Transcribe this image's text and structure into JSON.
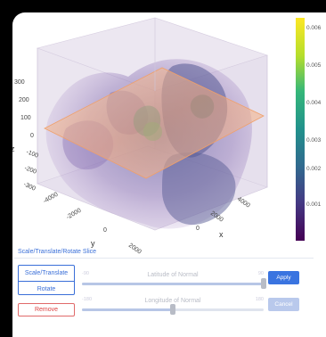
{
  "plot": {
    "z_axis": {
      "label": "z",
      "ticks": [
        "300",
        "200",
        "100",
        "0",
        "-100",
        "-200",
        "-300"
      ]
    },
    "y_axis": {
      "label": "y",
      "ticks": [
        "-4000",
        "-2000",
        "0",
        "2000"
      ]
    },
    "x_axis": {
      "label": "x",
      "ticks": [
        "4000",
        "2000",
        "0"
      ]
    },
    "colorbar": {
      "ticks": [
        "0.006",
        "0.005",
        "0.004",
        "0.003",
        "0.002",
        "0.001"
      ],
      "colors": [
        "#fde725",
        "#b5de2b",
        "#35b779",
        "#21918c",
        "#31688e",
        "#443983",
        "#440154"
      ]
    },
    "slice_plane_color": "#f5a25d",
    "volume_color": "#7a5fa8"
  },
  "controls": {
    "section_title": "Scale/Translate/Rotate Slice",
    "mode_buttons": [
      "Scale/Translate",
      "Rotate"
    ],
    "remove_label": "Remove",
    "apply_label": "Apply",
    "cancel_label": "Cancel",
    "latitude": {
      "label": "Latitude of Normal",
      "min_label": "-90",
      "max_label": "90",
      "value": 90,
      "fraction": 1.0
    },
    "longitude": {
      "label": "Longitude of Normal",
      "min_label": "-180",
      "max_label": "180",
      "value": 0,
      "fraction": 0.5
    }
  }
}
